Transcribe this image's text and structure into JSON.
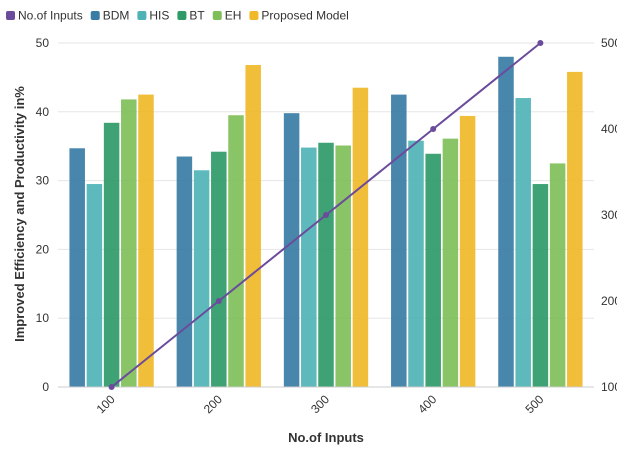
{
  "chart_data": {
    "type": "bar",
    "xlabel": "No.of Inputs",
    "ylabel": "Improved Efficiency and Productivity in%",
    "ylim": [
      0,
      50
    ],
    "y_ticks": [
      "0",
      "10",
      "20",
      "30",
      "40",
      "50"
    ],
    "y2lim": [
      100,
      500
    ],
    "y2_ticks": [
      "100",
      "200",
      "300",
      "400",
      "500"
    ],
    "categories": [
      "100",
      "200",
      "300",
      "400",
      "500"
    ],
    "grid": true,
    "legend_position": "top-left",
    "series": [
      {
        "name": "BDM",
        "type": "bar",
        "color": "#3a7ca5",
        "values": [
          34.7,
          33.5,
          39.8,
          42.5,
          48.0
        ]
      },
      {
        "name": "HIS",
        "type": "bar",
        "color": "#4fb3b6",
        "values": [
          29.5,
          31.5,
          34.8,
          35.8,
          42.0
        ]
      },
      {
        "name": "BT",
        "type": "bar",
        "color": "#2e9a68",
        "values": [
          38.4,
          34.2,
          35.5,
          33.9,
          29.5
        ]
      },
      {
        "name": "EH",
        "type": "bar",
        "color": "#7fbf5a",
        "values": [
          41.8,
          39.5,
          35.1,
          36.1,
          32.5
        ]
      },
      {
        "name": "Proposed Model",
        "type": "bar",
        "color": "#f0b928",
        "values": [
          42.5,
          46.8,
          43.5,
          39.4,
          45.8
        ]
      },
      {
        "name": "No.of Inputs",
        "type": "line",
        "axis": "y2",
        "color": "#6a4b9c",
        "values": [
          100,
          200,
          300,
          400,
          500
        ]
      }
    ],
    "legend_order": [
      "No.of Inputs",
      "BDM",
      "HIS",
      "BT",
      "EH",
      "Proposed Model"
    ]
  }
}
